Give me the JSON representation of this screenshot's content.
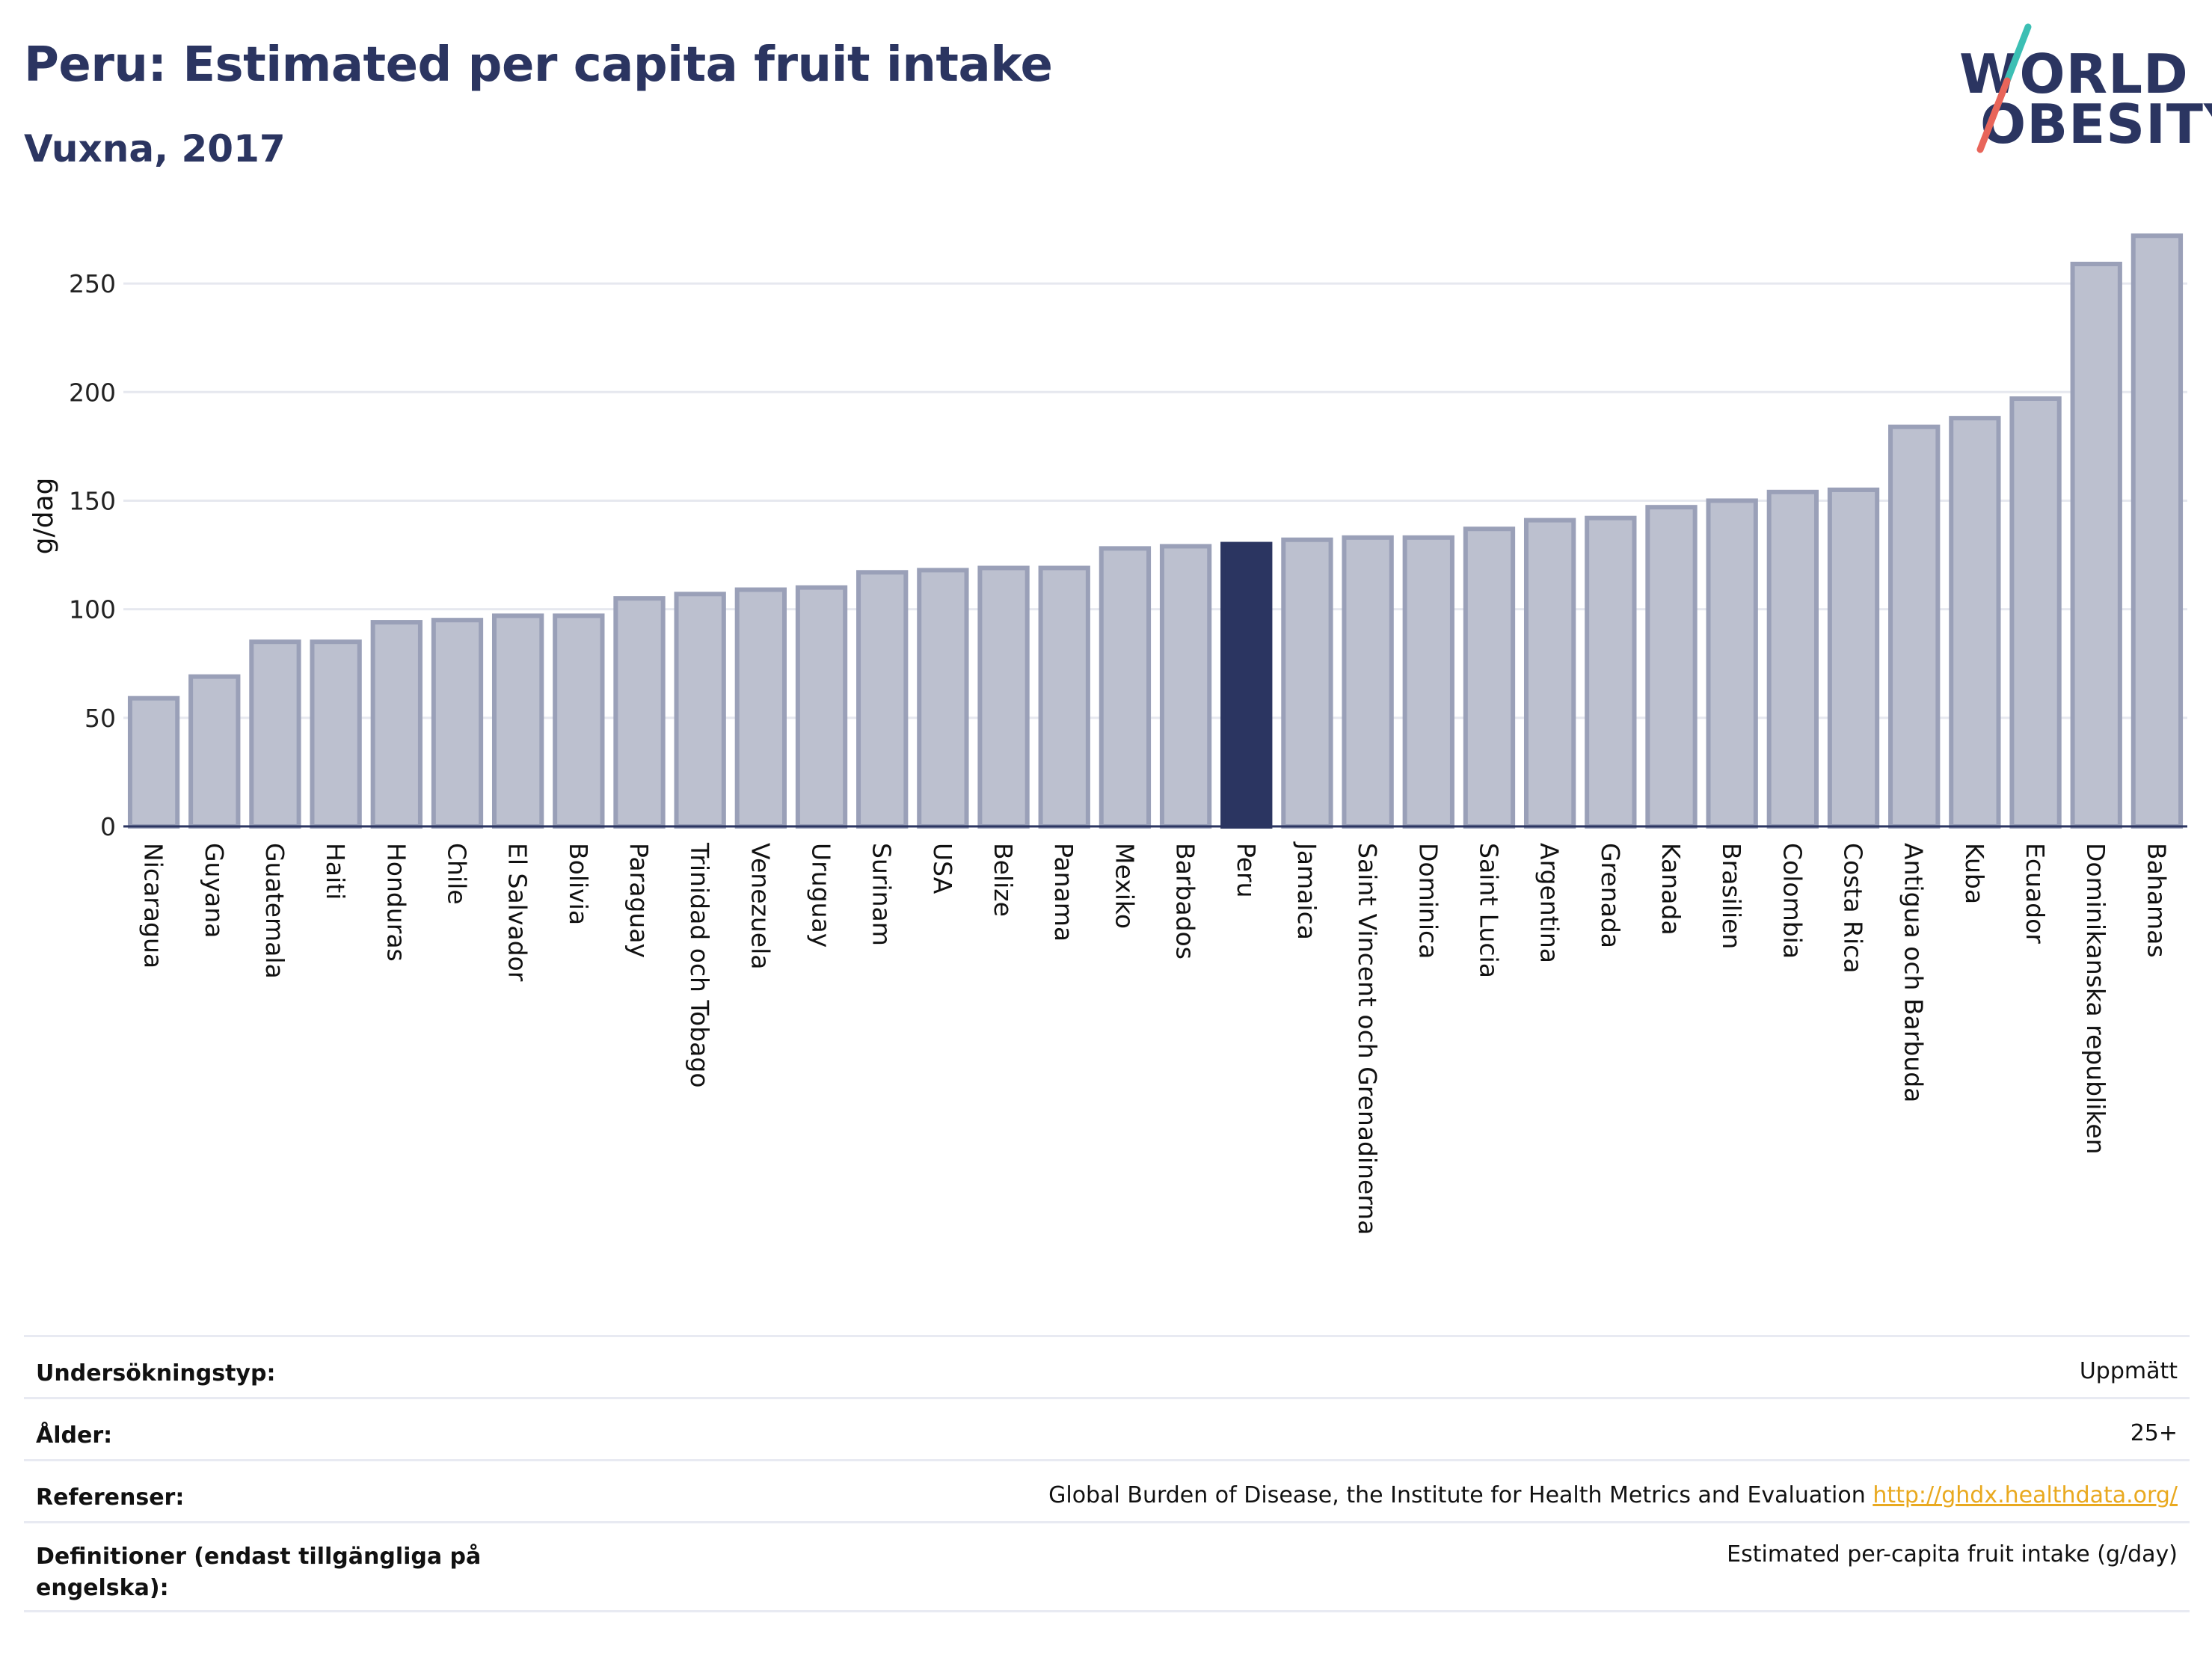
{
  "header": {
    "title": "Peru: Estimated per capita fruit intake",
    "subtitle": "Vuxna, 2017"
  },
  "logo": {
    "line1": "WORLD",
    "line2": "OBESITY",
    "colors": {
      "text": "#2b3561",
      "slash_top": "#3cbfb4",
      "slash_bottom": "#e8655a"
    }
  },
  "chart_data": {
    "type": "bar",
    "ylabel": "g/dag",
    "ylim": [
      0,
      280
    ],
    "yticks": [
      0,
      50,
      100,
      150,
      200,
      250
    ],
    "grid": true,
    "highlight": "Peru",
    "colors": {
      "bar": "#bcc0cf",
      "bar_edge": "#9aa0b8",
      "highlight": "#2b3561",
      "grid": "#e6e8ef"
    },
    "categories": [
      "Nicaragua",
      "Guyana",
      "Guatemala",
      "Haiti",
      "Honduras",
      "Chile",
      "El Salvador",
      "Bolivia",
      "Paraguay",
      "Trinidad och Tobago",
      "Venezuela",
      "Uruguay",
      "Surinam",
      "USA",
      "Belize",
      "Panama",
      "Mexiko",
      "Barbados",
      "Peru",
      "Jamaica",
      "Saint Vincent och Grenadinerna",
      "Dominica",
      "Saint Lucia",
      "Argentina",
      "Grenada",
      "Kanada",
      "Brasilien",
      "Colombia",
      "Costa Rica",
      "Antigua och Barbuda",
      "Kuba",
      "Ecuador",
      "Dominikanska republiken",
      "Bahamas"
    ],
    "values": [
      59,
      69,
      85,
      85,
      94,
      95,
      97,
      97,
      105,
      107,
      109,
      110,
      117,
      118,
      119,
      119,
      128,
      129,
      130,
      132,
      133,
      133,
      137,
      141,
      142,
      147,
      150,
      154,
      155,
      184,
      188,
      197,
      259,
      272
    ]
  },
  "meta": {
    "rows": [
      {
        "key": "Undersökningstyp:",
        "value": "Uppmätt"
      },
      {
        "key": "Ålder:",
        "value": "25+"
      },
      {
        "key": "Referenser:",
        "value": "Global Burden of Disease, the Institute for Health Metrics and Evaluation",
        "link": "http://ghdx.healthdata.org/"
      },
      {
        "key": "Definitioner (endast tillgängliga på engelska):",
        "value": "Estimated per-capita fruit intake (g/day)"
      }
    ]
  }
}
